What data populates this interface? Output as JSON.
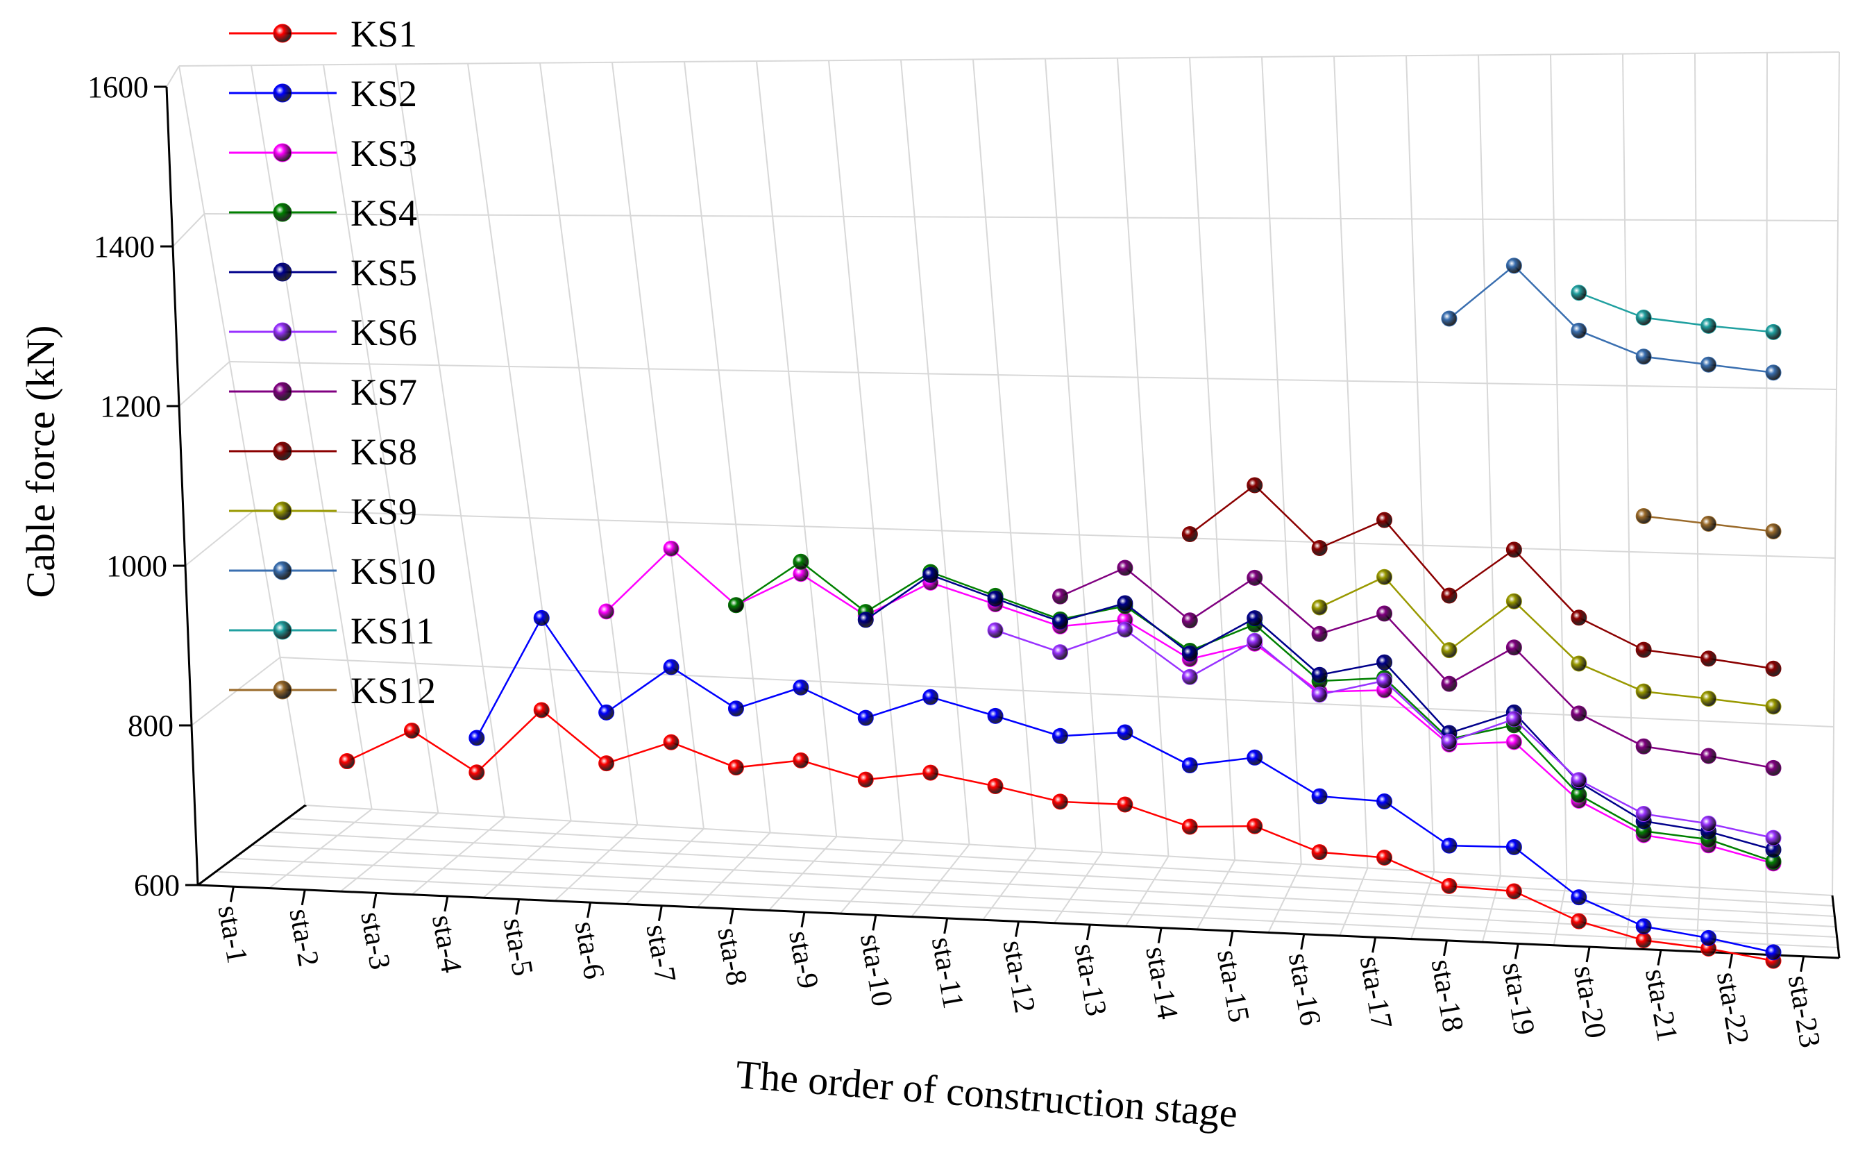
{
  "chart_data": {
    "type": "line",
    "title": "",
    "xlabel": "The order of construction stage",
    "ylabel": "Cable force (kN)",
    "ylim": [
      600,
      1600
    ],
    "yticks": [
      600,
      800,
      1000,
      1200,
      1400,
      1600
    ],
    "categories": [
      "sta-1",
      "sta-2",
      "sta-3",
      "sta-4",
      "sta-5",
      "sta-6",
      "sta-7",
      "sta-8",
      "sta-9",
      "sta-10",
      "sta-11",
      "sta-12",
      "sta-13",
      "sta-14",
      "sta-15",
      "sta-16",
      "sta-17",
      "sta-18",
      "sta-19",
      "sta-20",
      "sta-21",
      "sta-22",
      "sta-23"
    ],
    "legend_position": "top-left",
    "grid": true,
    "series": [
      {
        "name": "KS1",
        "color": "#ff0000",
        "values": [
          692,
          740,
          690,
          782,
          716,
          752,
          724,
          741,
          721,
          738,
          726,
          711,
          714,
          689,
          697,
          666,
          665,
          630,
          629,
          591,
          569,
          563,
          551
        ]
      },
      {
        "name": "KS2",
        "color": "#0000ff",
        "values": [
          null,
          null,
          737,
          908,
          786,
          856,
          806,
          843,
          808,
          845,
          826,
          805,
          818,
          778,
          797,
          748,
          748,
          690,
          695,
          627,
          590,
          579,
          564
        ]
      },
      {
        "name": "KS3",
        "color": "#ff00ff",
        "values": [
          null,
          null,
          null,
          null,
          925,
          1020,
          950,
          1002,
          952,
          1007,
          985,
          962,
          980,
          932,
          963,
          901,
          912,
          840,
          852,
          772,
          728,
          720,
          700
        ]
      },
      {
        "name": "KS4",
        "color": "#008000",
        "values": [
          null,
          null,
          null,
          null,
          null,
          null,
          950,
          1019,
          957,
          1022,
          997,
          972,
          1000,
          944,
          991,
          917,
          930,
          848,
          877,
          781,
          734,
          729,
          703
        ]
      },
      {
        "name": "KS5",
        "color": "#00008b",
        "values": [
          null,
          null,
          null,
          null,
          null,
          null,
          null,
          null,
          946,
          1018,
          993,
          969,
          1004,
          940,
          1000,
          926,
          953,
          857,
          896,
          800,
          749,
          741,
          721
        ]
      },
      {
        "name": "KS6",
        "color": "#9932ff",
        "values": [
          null,
          null,
          null,
          null,
          null,
          null,
          null,
          null,
          null,
          null,
          948,
          925,
          966,
          906,
          967,
          897,
          926,
          844,
          886,
          803,
          760,
          753,
          739
        ]
      },
      {
        "name": "KS7",
        "color": "#800080",
        "values": [
          null,
          null,
          null,
          null,
          null,
          null,
          null,
          null,
          null,
          null,
          null,
          1005,
          1055,
          988,
          1059,
          986,
          1025,
          930,
          993,
          903,
          862,
          856,
          846
        ]
      },
      {
        "name": "KS8",
        "color": "#8b0000",
        "values": [
          null,
          null,
          null,
          null,
          null,
          null,
          null,
          null,
          null,
          null,
          null,
          null,
          null,
          1113,
          1194,
          1112,
          1163,
          1061,
          1139,
          1047,
          1008,
          1004,
          998
        ]
      },
      {
        "name": "KS9",
        "color": "#999900",
        "values": [
          null,
          null,
          null,
          null,
          null,
          null,
          null,
          null,
          null,
          null,
          null,
          null,
          null,
          null,
          null,
          1025,
          1079,
          980,
          1062,
          978,
          945,
          943,
          940
        ]
      },
      {
        "name": "KS10",
        "color": "#3a6fb0",
        "values": [
          null,
          null,
          null,
          null,
          null,
          null,
          null,
          null,
          null,
          null,
          null,
          null,
          null,
          null,
          null,
          null,
          null,
          1472,
          1563,
          1478,
          1451,
          1451,
          1451
        ]
      },
      {
        "name": "KS11",
        "color": "#20a0a0",
        "values": [
          null,
          null,
          null,
          null,
          null,
          null,
          null,
          null,
          null,
          null,
          null,
          null,
          null,
          null,
          null,
          null,
          null,
          null,
          null,
          1535,
          1510,
          1510,
          1513
        ]
      },
      {
        "name": "KS12",
        "color": "#9a6a2a",
        "values": [
          null,
          null,
          null,
          null,
          null,
          null,
          null,
          null,
          null,
          null,
          null,
          null,
          null,
          null,
          null,
          null,
          null,
          null,
          null,
          null,
          1210,
          1209,
          1208
        ]
      }
    ]
  }
}
